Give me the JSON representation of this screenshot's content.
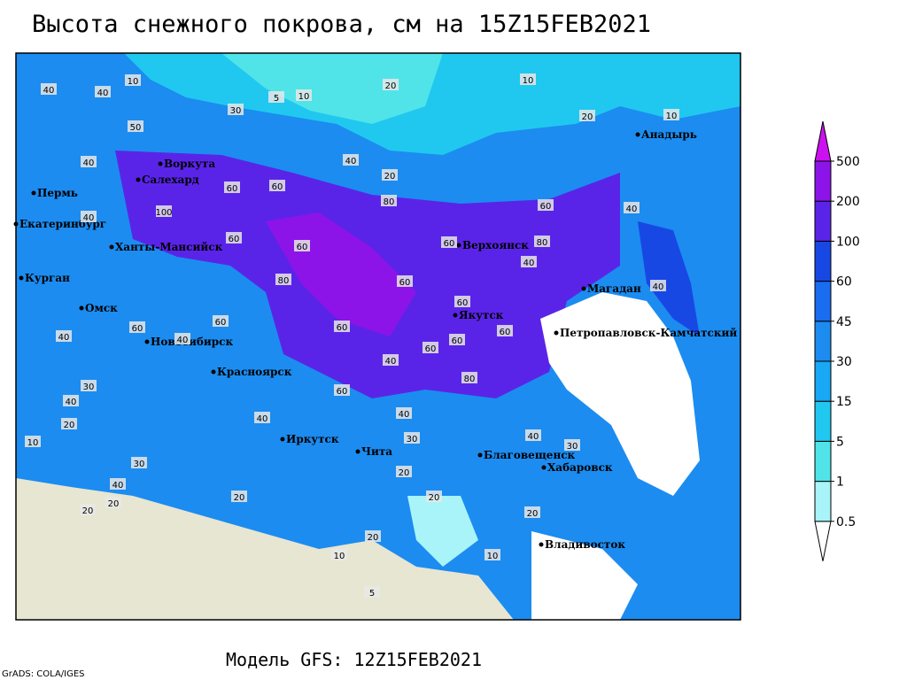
{
  "header": {
    "title": "Высота снежного покрова, см на 15Z15FEB2021"
  },
  "colorbar": {
    "levels": [
      0.5,
      1,
      5,
      15,
      30,
      45,
      60,
      100,
      200,
      500
    ],
    "colors": [
      "#ffffff",
      "#a8f4f8",
      "#50e4e8",
      "#20c8f0",
      "#18a8f4",
      "#1c8cf0",
      "#1a6cf0",
      "#1848e4",
      "#5a24e8",
      "#8c14e8",
      "#cc10f0"
    ]
  },
  "cities": [
    "Воркута",
    "Салехард",
    "Пермь",
    "Екатеринбург",
    "Ханты-Мансийск",
    "Курган",
    "Омск",
    "Новосибирск",
    "Красноярск",
    "Иркутск",
    "Чита",
    "Верхоянск",
    "Якутск",
    "Магадан",
    "Анадырь",
    "Петропавловск-Камчатский",
    "Благовещенск",
    "Хабаровск",
    "Владивосток"
  ],
  "contour_labels": [
    40,
    40,
    10,
    20,
    10,
    10,
    5,
    30,
    20,
    10,
    50,
    40,
    20,
    40,
    60,
    60,
    100,
    40,
    60,
    80,
    40,
    60,
    60,
    60,
    80,
    40,
    80,
    60,
    40,
    60,
    60,
    60,
    60,
    60,
    60,
    40,
    40,
    60,
    40,
    60,
    40,
    30,
    80,
    40,
    40,
    20,
    10,
    30,
    40,
    30,
    40,
    30,
    20,
    20,
    20,
    10,
    20,
    10,
    5,
    20,
    20,
    20
  ],
  "footer": {
    "model": "Модель GFS: 12Z15FEB2021",
    "credit": "GrADS: COLA/IGES"
  }
}
